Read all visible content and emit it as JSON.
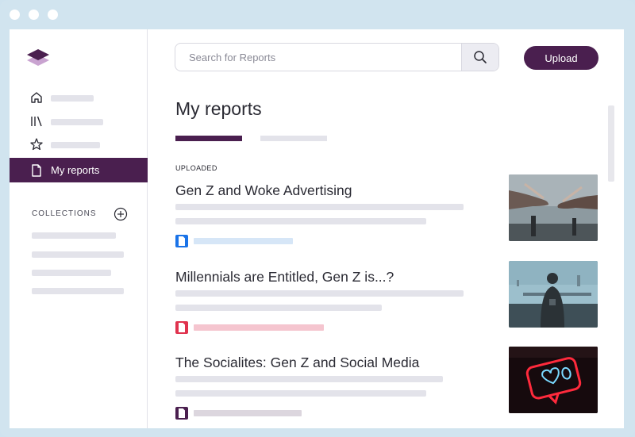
{
  "window": {
    "controls": [
      "close",
      "minimize",
      "maximize"
    ]
  },
  "sidebar": {
    "logo": "layers-logo",
    "nav": [
      {
        "icon": "home-icon"
      },
      {
        "icon": "library-icon"
      },
      {
        "icon": "star-icon"
      },
      {
        "icon": "document-icon",
        "label": "My reports",
        "active": true
      }
    ],
    "collections_title": "COLLECTIONS",
    "add_icon": "plus-circle-icon"
  },
  "header": {
    "search_placeholder": "Search for Reports",
    "search_icon": "search-icon",
    "upload_label": "Upload"
  },
  "main": {
    "title": "My reports",
    "section_label": "UPLOADED",
    "reports": [
      {
        "title": "Gen Z and Woke Advertising",
        "file_color": "#1a73e8",
        "tag_color": "#d6e6f7",
        "thumbnail": "hands-reaching-photo"
      },
      {
        "title": "Millennials are Entitled, Gen Z is...?",
        "file_color": "#e0334e",
        "tag_color": "#f5c5cf",
        "thumbnail": "person-phone-city-photo"
      },
      {
        "title": "The Socialites: Gen Z and Social Media",
        "file_color": "#4a1f4f",
        "tag_color": "#dcd6de",
        "thumbnail": "neon-heart-sign-photo"
      }
    ]
  },
  "colors": {
    "accent": "#4a1f4f",
    "frame": "#d1e4ef",
    "placeholder": "#e3e3ea"
  }
}
